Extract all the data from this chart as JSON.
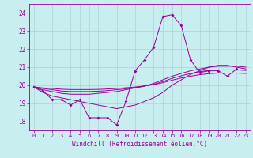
{
  "xlabel": "Windchill (Refroidissement éolien,°C)",
  "bg_color": "#c8eef0",
  "grid_color": "#b0d8dc",
  "line_color": "#990099",
  "xlim": [
    -0.5,
    23.5
  ],
  "ylim": [
    17.5,
    24.5
  ],
  "yticks": [
    18,
    19,
    20,
    21,
    22,
    23,
    24
  ],
  "xticks": [
    0,
    1,
    2,
    3,
    4,
    5,
    6,
    7,
    8,
    9,
    10,
    11,
    12,
    13,
    14,
    15,
    16,
    17,
    18,
    19,
    20,
    21,
    22,
    23
  ],
  "series": [
    [
      19.9,
      19.7,
      19.2,
      19.2,
      18.9,
      19.2,
      18.2,
      18.2,
      18.2,
      17.8,
      19.1,
      20.8,
      21.4,
      22.1,
      23.8,
      23.9,
      23.3,
      21.4,
      20.7,
      20.8,
      20.8,
      20.5,
      20.9,
      null
    ],
    [
      19.9,
      19.6,
      19.4,
      19.3,
      19.2,
      19.1,
      19.0,
      18.9,
      18.8,
      18.7,
      18.8,
      18.9,
      19.1,
      19.3,
      19.6,
      20.0,
      20.3,
      20.6,
      20.8,
      21.0,
      21.1,
      21.1,
      21.0,
      20.9
    ],
    [
      19.9,
      19.75,
      19.65,
      19.55,
      19.5,
      19.5,
      19.5,
      19.55,
      19.6,
      19.65,
      19.75,
      19.85,
      19.95,
      20.1,
      20.3,
      20.5,
      20.65,
      20.8,
      20.9,
      21.0,
      21.05,
      21.05,
      21.05,
      21.0
    ],
    [
      19.9,
      19.82,
      19.75,
      19.68,
      19.65,
      19.65,
      19.65,
      19.67,
      19.7,
      19.75,
      19.8,
      19.87,
      19.95,
      20.05,
      20.2,
      20.38,
      20.52,
      20.65,
      20.75,
      20.82,
      20.85,
      20.85,
      20.85,
      20.82
    ],
    [
      19.9,
      19.85,
      19.82,
      19.78,
      19.76,
      19.76,
      19.76,
      19.77,
      19.79,
      19.82,
      19.86,
      19.9,
      19.96,
      20.03,
      20.14,
      20.28,
      20.4,
      20.5,
      20.58,
      20.64,
      20.67,
      20.67,
      20.67,
      20.65
    ]
  ]
}
